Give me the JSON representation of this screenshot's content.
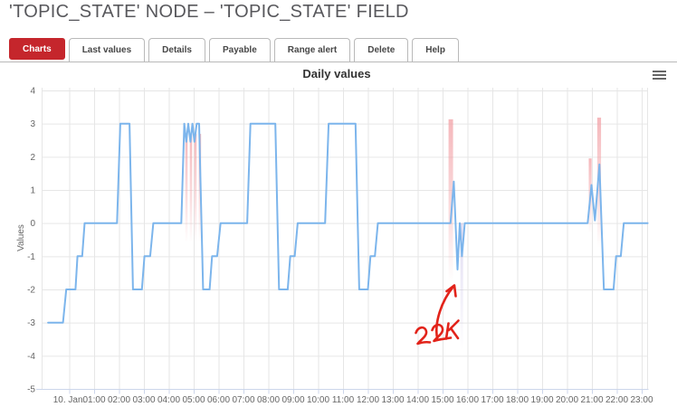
{
  "page_title": "'TOPIC_STATE' NODE – 'TOPIC_STATE' FIELD",
  "tabs": [
    {
      "label": "Charts",
      "active": true
    },
    {
      "label": "Last values",
      "active": false
    },
    {
      "label": "Details",
      "active": false
    },
    {
      "label": "Payable",
      "active": false
    },
    {
      "label": "Range alert",
      "active": false
    },
    {
      "label": "Delete",
      "active": false
    },
    {
      "label": "Help",
      "active": false
    }
  ],
  "chart_header": {
    "title": "Daily values",
    "menu_icon": "hamburger-icon"
  },
  "colors": {
    "accent_red": "#c5262c",
    "line_blue": "#7cb5ec",
    "band_pink": "#f2a0a5",
    "band_lavender": "#b8aee0",
    "annotation_red": "#e2231a",
    "grid": "#e6e6e6",
    "axis": "#ccd6eb",
    "tick_text": "#666666",
    "title_text": "#333333"
  },
  "chart_data": {
    "type": "line",
    "title": "Daily values",
    "xlabel": "",
    "ylabel": "Values",
    "ylim": [
      -5,
      4
    ],
    "yticks": [
      4,
      3,
      2,
      1,
      0,
      -1,
      -2,
      -3,
      -4,
      -5
    ],
    "xtick_labels": [
      "10. Jan.",
      "01:00",
      "02:00",
      "03:00",
      "04:00",
      "05:00",
      "06:00",
      "07:00",
      "08:00",
      "09:00",
      "10:00",
      "11:00",
      "12:00",
      "13:00",
      "14:00",
      "15:00",
      "16:00",
      "17:00",
      "18:00",
      "19:00",
      "20:00",
      "21:00",
      "22:00",
      "23:00"
    ],
    "grid": true,
    "legend": false,
    "series": [
      {
        "name": "Values",
        "color": "#7cb5ec",
        "points_hour_value": [
          [
            -0.85,
            -3
          ],
          [
            -0.25,
            -3
          ],
          [
            -0.12,
            -2
          ],
          [
            0.25,
            -2
          ],
          [
            0.33,
            -1
          ],
          [
            0.52,
            -1
          ],
          [
            0.62,
            0
          ],
          [
            1.92,
            0
          ],
          [
            2.05,
            3
          ],
          [
            2.42,
            3
          ],
          [
            2.56,
            -2
          ],
          [
            2.92,
            -2
          ],
          [
            3.02,
            -1
          ],
          [
            3.25,
            -1
          ],
          [
            3.38,
            0
          ],
          [
            4.5,
            0
          ],
          [
            4.62,
            3
          ],
          [
            4.7,
            2.45
          ],
          [
            4.78,
            3
          ],
          [
            4.87,
            2.45
          ],
          [
            4.95,
            3
          ],
          [
            5.03,
            2.45
          ],
          [
            5.12,
            3
          ],
          [
            5.22,
            3
          ],
          [
            5.38,
            -2
          ],
          [
            5.64,
            -2
          ],
          [
            5.74,
            -1
          ],
          [
            5.94,
            -1
          ],
          [
            6.08,
            0
          ],
          [
            7.15,
            0
          ],
          [
            7.28,
            3
          ],
          [
            8.28,
            3
          ],
          [
            8.43,
            -2
          ],
          [
            8.78,
            -2
          ],
          [
            8.88,
            -1
          ],
          [
            9.06,
            -1
          ],
          [
            9.18,
            0
          ],
          [
            10.28,
            0
          ],
          [
            10.42,
            3
          ],
          [
            11.5,
            3
          ],
          [
            11.65,
            -2
          ],
          [
            12.0,
            -2
          ],
          [
            12.1,
            -1
          ],
          [
            12.28,
            -1
          ],
          [
            12.4,
            0
          ],
          [
            15.32,
            0
          ],
          [
            15.45,
            1.25
          ],
          [
            15.6,
            -1.4
          ],
          [
            15.69,
            0
          ],
          [
            15.78,
            -1
          ],
          [
            15.89,
            0
          ],
          [
            20.83,
            0
          ],
          [
            20.98,
            1.15
          ],
          [
            21.12,
            0.08
          ],
          [
            21.3,
            1.77
          ],
          [
            21.48,
            -2
          ],
          [
            21.87,
            -2
          ],
          [
            21.97,
            -1
          ],
          [
            22.16,
            -1
          ],
          [
            22.28,
            0
          ],
          [
            23.24,
            0
          ]
        ]
      }
    ],
    "alert_bands": [
      {
        "hour": 4.71,
        "v_top": 2.69,
        "v_bottom": -0.59,
        "width": 2.6,
        "kind": "pink"
      },
      {
        "hour": 4.89,
        "v_top": 2.69,
        "v_bottom": -0.59,
        "width": 2.6,
        "kind": "pink"
      },
      {
        "hour": 5.07,
        "v_top": 2.69,
        "v_bottom": -0.59,
        "width": 2.6,
        "kind": "pink"
      },
      {
        "hour": 5.25,
        "v_top": 2.69,
        "v_bottom": -0.59,
        "width": 2.6,
        "kind": "pink"
      },
      {
        "hour": 15.33,
        "v_top": 3.13,
        "v_bottom": -1.78,
        "width": 5.0,
        "kind": "pink"
      },
      {
        "hour": 15.77,
        "v_top": 0.0,
        "v_bottom": -3.85,
        "width": 3.0,
        "kind": "lavender"
      },
      {
        "hour": 20.93,
        "v_top": 1.95,
        "v_bottom": -0.31,
        "width": 3.2,
        "kind": "pink"
      },
      {
        "hour": 21.29,
        "v_top": 3.18,
        "v_bottom": -0.74,
        "width": 4.2,
        "kind": "pink"
      }
    ],
    "annotation": {
      "text": "22K",
      "color": "#e2231a",
      "points_at_hour": 15.6,
      "strokes": [
        "M459.5,368 c2.5,-7 10,-8 11.5,-1.5 c1,5 -6.5,9.5 -9.5,13.5 c4.5,-1.5 10,-2 13.5,-1.5",
        "M477.5,365 c2.5,-7 10,-8 11.5,-1.5 c1,5 -6.5,9.5 -9.5,13.5 c5,-2 13.5,-2.5 18.5,-3.5",
        "M495.5,357.5 l-2.5,17",
        "M506.5,354.5 l-10.5,10.5",
        "M498.5,363.5 l7.5,10.5",
        "M483,373.5 c-3,-16 4,-40 18.5,-57.5",
        "M493.5,322 l8.5,-6.5 l1.5,12"
      ]
    }
  }
}
